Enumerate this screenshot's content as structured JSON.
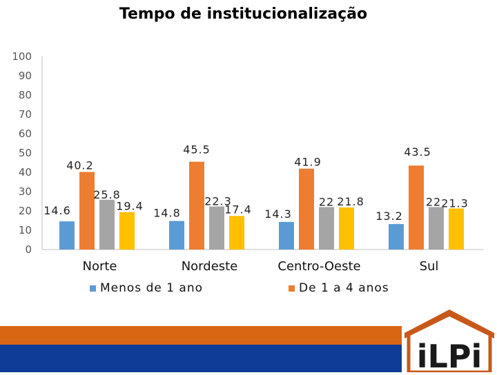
{
  "chart_data": {
    "type": "bar",
    "title": "Tempo de institucionalização",
    "categories": [
      "Norte",
      "Nordeste",
      "Centro-Oeste",
      "Sul"
    ],
    "series": [
      {
        "name": "Menos de 1 ano",
        "color": "#5b9bd5",
        "values": [
          14.6,
          14.8,
          14.3,
          13.2
        ],
        "labels": [
          "14.6",
          "14.8",
          "14.3",
          "13.2"
        ]
      },
      {
        "name": "De 1 a 4 anos",
        "color": "#ed7d31",
        "values": [
          40.2,
          45.5,
          41.9,
          43.5
        ],
        "labels": [
          "40.2",
          "45.5",
          "41.9",
          "43.5"
        ]
      },
      {
        "name": "",
        "color": "#a5a5a5",
        "values": [
          25.8,
          22.3,
          22,
          22
        ],
        "labels": [
          "25.8",
          "22.3",
          "22",
          "22"
        ]
      },
      {
        "name": "",
        "color": "#ffc000",
        "values": [
          19.4,
          17.4,
          21.8,
          21.3
        ],
        "labels": [
          "19.4",
          "17.4",
          "21.8",
          "21.3"
        ]
      }
    ],
    "yticks": [
      "0",
      "10",
      "20",
      "30",
      "40",
      "50",
      "60",
      "70",
      "80",
      "90",
      "100"
    ],
    "ylim": [
      0,
      100
    ],
    "xlabel": "",
    "ylabel": "",
    "legend": "bottom"
  },
  "footer": {
    "logo_text": "iLPi",
    "stripe_orange": "#d86613",
    "stripe_blue": "#0f3c96",
    "logo_color": "#1a1a1a",
    "roof_color": "#c8581a"
  }
}
